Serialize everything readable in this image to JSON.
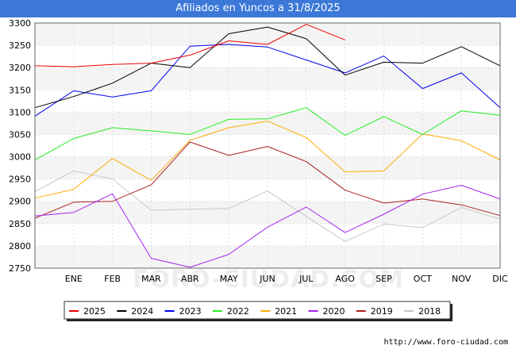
{
  "header": {
    "title": "Afiliados en Yuncos a 31/8/2025"
  },
  "watermark": "FORO-CIUDAD.COM",
  "credit": "http://www.foro-ciudad.com",
  "chart_data": {
    "type": "line",
    "title": "Afiliados en Yuncos a 31/8/2025",
    "categories": [
      "",
      "ENE",
      "FEB",
      "MAR",
      "ABR",
      "MAY",
      "JUN",
      "JUL",
      "AGO",
      "SEP",
      "OCT",
      "NOV",
      "DIC"
    ],
    "ylim": [
      2750,
      3300
    ],
    "yticks": [
      2750,
      2800,
      2850,
      2900,
      2950,
      3000,
      3050,
      3100,
      3150,
      3200,
      3250,
      3300
    ],
    "grid": true,
    "legend_position": "bottom",
    "series": [
      {
        "name": "2018",
        "color": "#c8c8c8",
        "values": [
          2922,
          2968,
          2950,
          2880,
          2882,
          2884,
          2923,
          2866,
          2810,
          2849,
          2841,
          2886,
          2860
        ]
      },
      {
        "name": "2019",
        "color": "#aa2222",
        "values": [
          2862,
          2898,
          2900,
          2937,
          3033,
          3003,
          3023,
          2989,
          2925,
          2896,
          2905,
          2892,
          2868
        ]
      },
      {
        "name": "2020",
        "color": "#aa22ee",
        "values": [
          2867,
          2875,
          2917,
          2772,
          2752,
          2781,
          2842,
          2887,
          2830,
          2871,
          2916,
          2936,
          2905
        ]
      },
      {
        "name": "2021",
        "color": "#ffaa00",
        "values": [
          2907,
          2927,
          2996,
          2947,
          3037,
          3065,
          3080,
          3043,
          2966,
          2968,
          3051,
          3036,
          2993
        ]
      },
      {
        "name": "2022",
        "color": "#22ee22",
        "values": [
          2993,
          3041,
          3065,
          3058,
          3050,
          3084,
          3085,
          3110,
          3048,
          3090,
          3050,
          3103,
          3093
        ]
      },
      {
        "name": "2023",
        "color": "#0000ee",
        "values": [
          3091,
          3148,
          3134,
          3148,
          3248,
          3252,
          3246,
          3217,
          3188,
          3226,
          3153,
          3188,
          3110
        ]
      },
      {
        "name": "2024",
        "color": "#000000",
        "values": [
          3110,
          3135,
          3165,
          3210,
          3200,
          3276,
          3291,
          3265,
          3183,
          3212,
          3210,
          3247,
          3204
        ]
      },
      {
        "name": "2025",
        "color": "#ee0000",
        "values": [
          3204,
          3202,
          3207,
          3210,
          3228,
          3260,
          3252,
          3297,
          3262,
          null,
          null,
          null,
          null
        ]
      }
    ],
    "legend_order": [
      "2025",
      "2024",
      "2023",
      "2022",
      "2021",
      "2020",
      "2019",
      "2018"
    ]
  }
}
